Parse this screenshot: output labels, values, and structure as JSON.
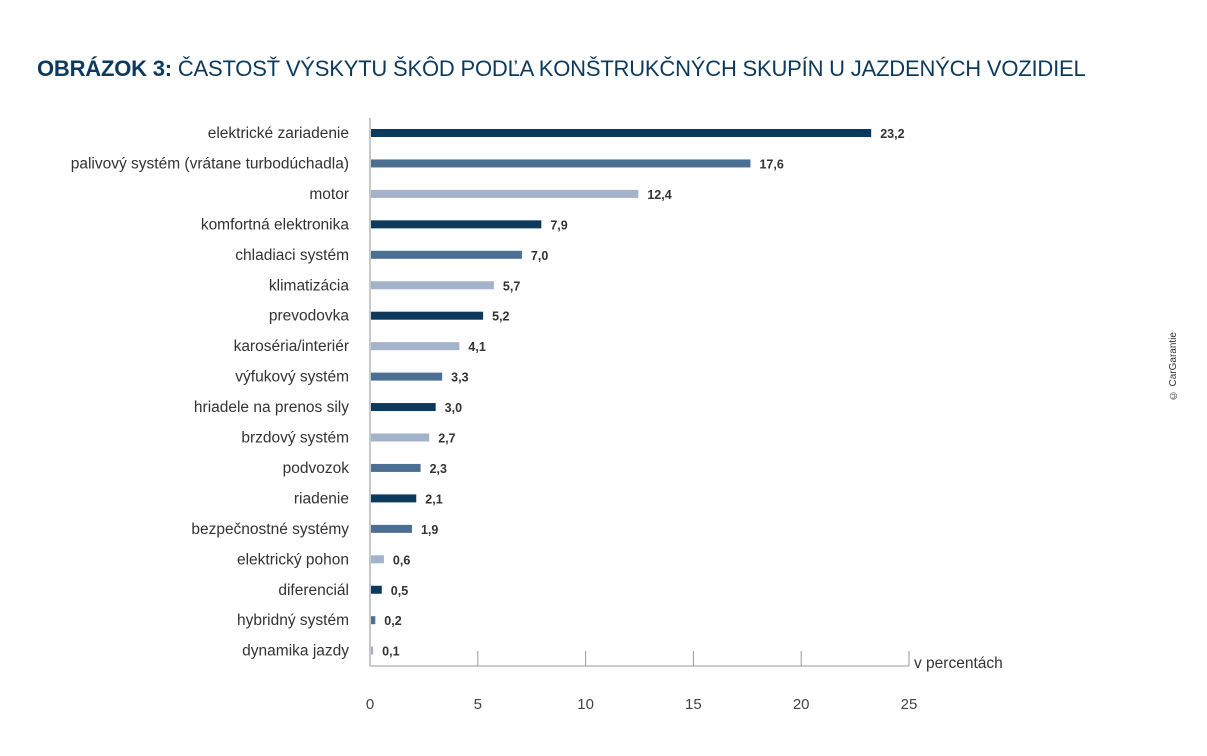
{
  "title": {
    "prefix": "OBRÁZOK 3:",
    "text": "ČASTOSŤ VÝSKYTU ŠKÔD PODĽA KONŠTRUKČNÝCH SKUPÍN U JAZDENÝCH VOZIDIEL"
  },
  "copyright": "© CarGarantie",
  "colors": {
    "dark": "#0d3a5c",
    "mid": "#4b6f93",
    "light": "#a2b3cb",
    "axis": "#999999"
  },
  "chart_data": {
    "type": "bar",
    "orientation": "horizontal",
    "title": "OBRÁZOK 3: ČASTOSŤ VÝSKYTU ŠKÔD PODĽA KONŠTRUKČNÝCH SKUPÍN U JAZDENÝCH VOZIDIEL",
    "xlabel": "v percentách",
    "xlim": [
      0,
      25
    ],
    "xticks": [
      0,
      5,
      10,
      15,
      20,
      25
    ],
    "categories": [
      "elektrické zariadenie",
      "palivový systém (vrátane turbodúchadla)",
      "motor",
      "komfortná elektronika",
      "chladiaci systém",
      "klimatizácia",
      "prevodovka",
      "karoséria/interiér",
      "výfukový systém",
      "hriadele na prenos sily",
      "brzdový systém",
      "podvozok",
      "riadenie",
      "bezpečnostné systémy",
      "elektrický pohon",
      "diferenciál",
      "hybridný systém",
      "dynamika jazdy"
    ],
    "values": [
      23.2,
      17.6,
      12.4,
      7.9,
      7.0,
      5.7,
      5.2,
      4.1,
      3.3,
      3.0,
      2.7,
      2.3,
      2.1,
      1.9,
      0.6,
      0.5,
      0.2,
      0.1
    ],
    "value_labels": [
      "23,2",
      "17,6",
      "12,4",
      "7,9",
      "7,0",
      "5,7",
      "5,2",
      "4,1",
      "3,3",
      "3,0",
      "2,7",
      "2,3",
      "2,1",
      "1,9",
      "0,6",
      "0,5",
      "0,2",
      "0,1"
    ],
    "bar_shades": [
      "dark",
      "mid",
      "light",
      "dark",
      "mid",
      "light",
      "dark",
      "light",
      "mid",
      "dark",
      "light",
      "mid",
      "dark",
      "mid",
      "light",
      "dark",
      "mid",
      "light"
    ]
  }
}
